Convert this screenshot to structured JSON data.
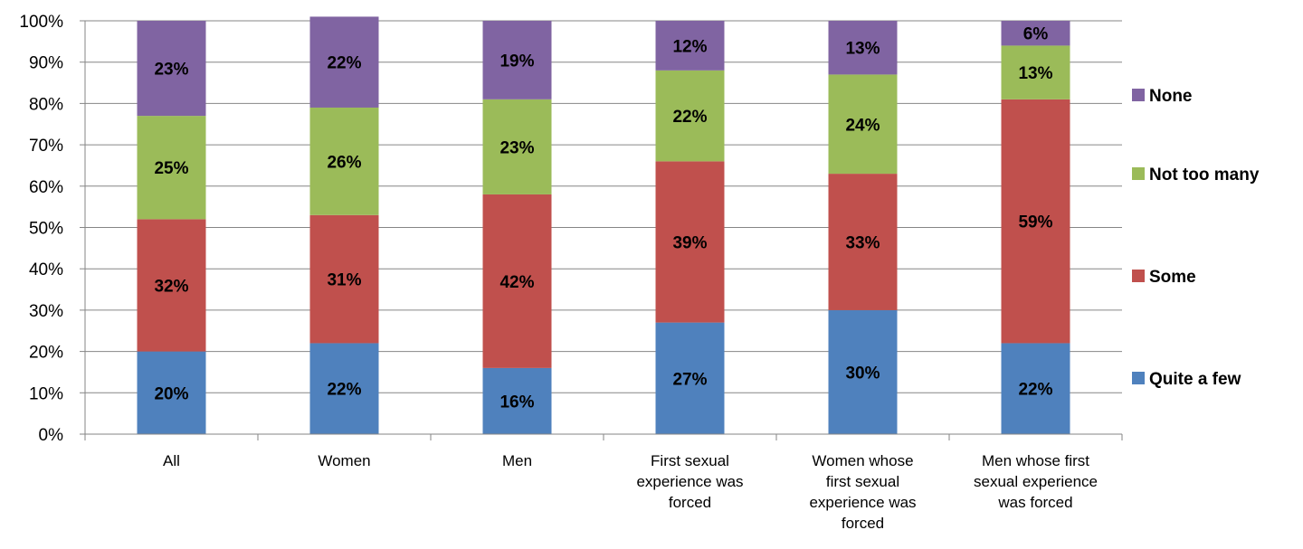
{
  "chart_data": {
    "type": "bar",
    "stacked": true,
    "categories": [
      [
        "All"
      ],
      [
        "Women"
      ],
      [
        "Men"
      ],
      [
        "First sexual",
        "experience was",
        "forced"
      ],
      [
        "Women whose",
        "first sexual",
        "experience was",
        "forced"
      ],
      [
        "Men whose first",
        "sexual experience",
        "was forced"
      ]
    ],
    "series": [
      {
        "name": "Quite a few",
        "color": "#4f81bd",
        "values": [
          20,
          22,
          16,
          27,
          30,
          22
        ]
      },
      {
        "name": "Some",
        "color": "#c0504d",
        "values": [
          32,
          31,
          42,
          39,
          33,
          59
        ]
      },
      {
        "name": "Not too many",
        "color": "#9bbb59",
        "values": [
          25,
          26,
          23,
          22,
          24,
          13
        ]
      },
      {
        "name": "None",
        "color": "#8064a2",
        "values": [
          23,
          22,
          19,
          12,
          13,
          6
        ]
      }
    ],
    "value_suffix": "%",
    "ylim": [
      0,
      100
    ],
    "yticks": [
      "0%",
      "10%",
      "20%",
      "30%",
      "40%",
      "50%",
      "60%",
      "70%",
      "80%",
      "90%",
      "100%"
    ],
    "grid": true,
    "legend_position": "right",
    "title": "",
    "xlabel": "",
    "ylabel": ""
  }
}
